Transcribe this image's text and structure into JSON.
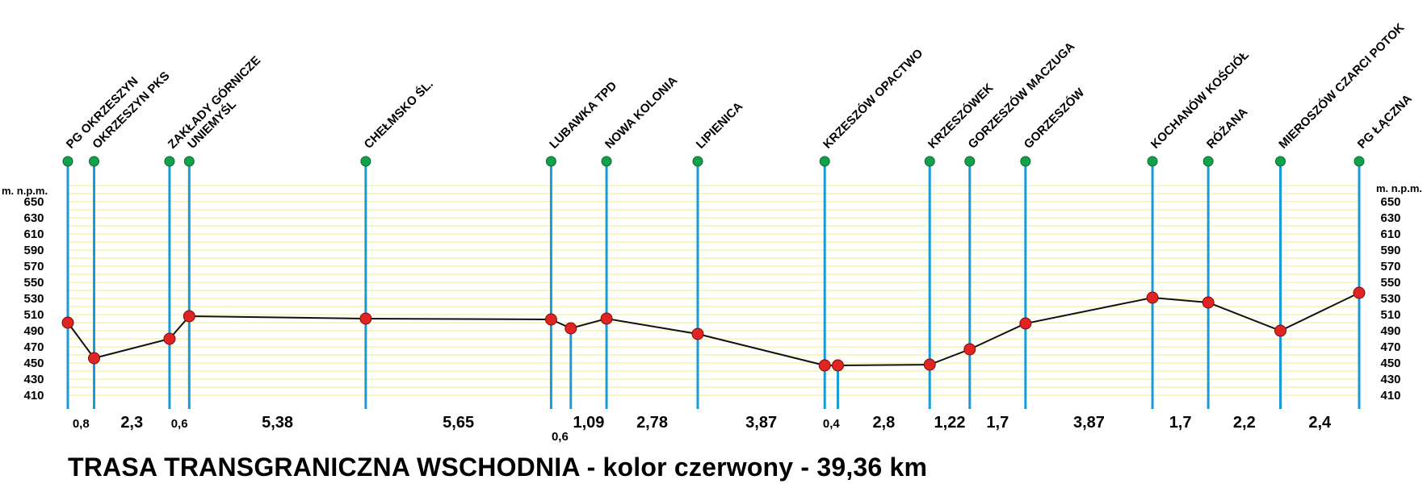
{
  "title": "TRASA TRANSGRANICZNA WSCHODNIA - kolor czerwony - 39,36 km",
  "colors": {
    "station_line": "#1a9bd7",
    "station_top": "#12a14a",
    "point": "#e02424",
    "profile": "#111111",
    "grid": "#f2f09a"
  },
  "chart_data": {
    "type": "line",
    "y_axis_label_left": "m. n.p.m.",
    "y_axis_label_right": "m. n.p.m.",
    "yticks": [
      410,
      430,
      450,
      470,
      490,
      510,
      530,
      550,
      570,
      590,
      610,
      630,
      650
    ],
    "ylim": [
      400,
      670
    ],
    "grid": true,
    "stations": [
      {
        "name": "PG OKRZESZYN",
        "x": 0,
        "elevation": 500
      },
      {
        "name": "OKRZESZYN PKS",
        "x": 0.8,
        "elevation": 456
      },
      {
        "name": "ZAKŁADY GÓRNICZE",
        "x": 3.1,
        "elevation": 480
      },
      {
        "name": "UNIEMYŚL",
        "x": 3.7,
        "elevation": 508
      },
      {
        "name": "CHEŁMSKO ŚL.",
        "x": 9.08,
        "elevation": 505
      },
      {
        "name": "LUBAWKA TPD",
        "x": 14.73,
        "elevation": 504
      },
      {
        "name": "",
        "x": 15.33,
        "elevation": 493
      },
      {
        "name": "NOWA KOLONIA",
        "x": 16.42,
        "elevation": 505
      },
      {
        "name": "LIPIENICA",
        "x": 19.2,
        "elevation": 486
      },
      {
        "name": "KRZESZÓW OPACTWO",
        "x": 23.07,
        "elevation": 447
      },
      {
        "name": "",
        "x": 23.47,
        "elevation": 447
      },
      {
        "name": "KRZESZÓWEK",
        "x": 26.27,
        "elevation": 448
      },
      {
        "name": "GORZESZÓW MACZUGA",
        "x": 27.49,
        "elevation": 467
      },
      {
        "name": "GORZESZÓW",
        "x": 29.19,
        "elevation": 499
      },
      {
        "name": "KOCHANÓW KOŚCIÓŁ",
        "x": 33.06,
        "elevation": 531
      },
      {
        "name": "RÓŻANA",
        "x": 34.76,
        "elevation": 525
      },
      {
        "name": "MIEROSZÓW CZARCI POTOK",
        "x": 36.96,
        "elevation": 490
      },
      {
        "name": "PG ŁĄCZNA",
        "x": 39.36,
        "elevation": 537
      }
    ],
    "distances": [
      {
        "label": "0,8",
        "from": 0,
        "to": 1
      },
      {
        "label": "2,3",
        "from": 1,
        "to": 2
      },
      {
        "label": "0,6",
        "from": 2,
        "to": 3
      },
      {
        "label": "5,38",
        "from": 3,
        "to": 4
      },
      {
        "label": "5,65",
        "from": 4,
        "to": 5
      },
      {
        "label": "0,6",
        "from": 5,
        "to": 6
      },
      {
        "label": "1,09",
        "from": 6,
        "to": 7
      },
      {
        "label": "2,78",
        "from": 7,
        "to": 8
      },
      {
        "label": "3,87",
        "from": 8,
        "to": 9
      },
      {
        "label": "0,4",
        "from": 9,
        "to": 10
      },
      {
        "label": "2,8",
        "from": 10,
        "to": 11
      },
      {
        "label": "1,22",
        "from": 11,
        "to": 12
      },
      {
        "label": "1,7",
        "from": 12,
        "to": 13
      },
      {
        "label": "3,87",
        "from": 13,
        "to": 14
      },
      {
        "label": "1,7",
        "from": 14,
        "to": 15
      },
      {
        "label": "2,2",
        "from": 15,
        "to": 16
      },
      {
        "label": "2,4",
        "from": 16,
        "to": 17
      }
    ]
  }
}
